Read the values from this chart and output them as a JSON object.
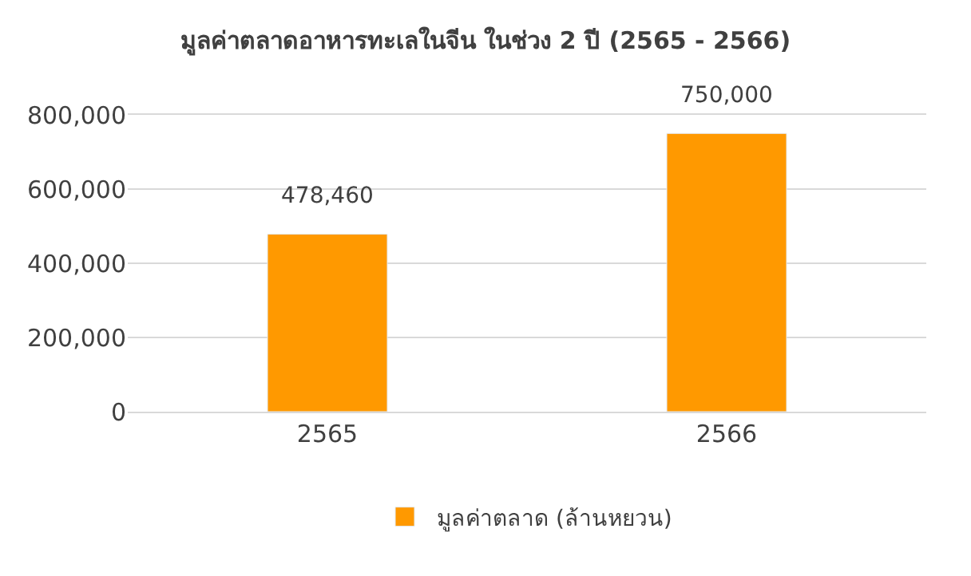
{
  "chart_data": {
    "type": "bar",
    "title": "มูลค่าตลาดอาหารทะเลในจีน ในช่วง 2 ปี (2565 - 2566)",
    "categories": [
      "2565",
      "2566"
    ],
    "series": [
      {
        "name": "มูลค่าตลาด (ล้านหยวน)",
        "color": "#ff9900",
        "values": [
          478460,
          750000
        ],
        "value_labels": [
          "478,460",
          "750,000"
        ]
      }
    ],
    "ylim": [
      0,
      800000
    ],
    "yticks": [
      {
        "value": 0,
        "label": "0"
      },
      {
        "value": 200000,
        "label": "200,000"
      },
      {
        "value": 400000,
        "label": "400,000"
      },
      {
        "value": 600000,
        "label": "600,000"
      },
      {
        "value": 800000,
        "label": "800,000"
      }
    ],
    "grid": "y",
    "legend": "bottom"
  }
}
